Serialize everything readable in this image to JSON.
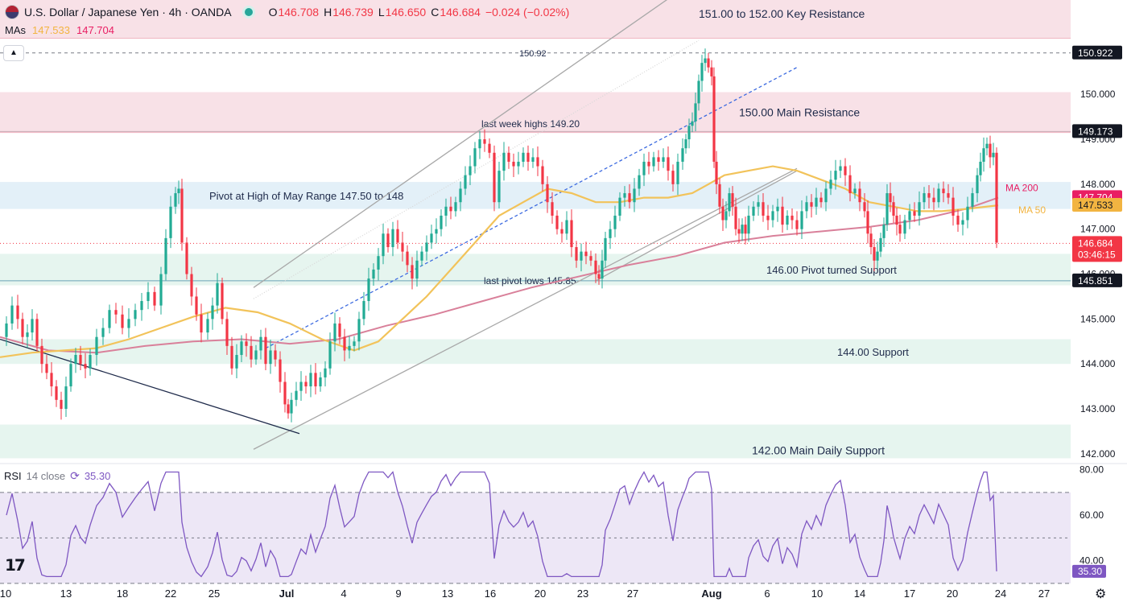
{
  "header": {
    "title": "U.S. Dollar / Japanese Yen · 4h · OANDA",
    "ohlc": [
      {
        "k": "O",
        "v": "146.708"
      },
      {
        "k": "H",
        "v": "146.739"
      },
      {
        "k": "L",
        "v": "146.650"
      },
      {
        "k": "C",
        "v": "146.684"
      }
    ],
    "change": "−0.024 (−0.02%)"
  },
  "mas": {
    "label": "MAs",
    "ma50": "147.533",
    "ma200": "147.704"
  },
  "rsi": {
    "label": "RSI",
    "params": "14 close",
    "value": "35.30"
  },
  "colors": {
    "up": "#22ab94",
    "down": "#f23645",
    "ma50": "#f2c35a",
    "ma200": "#d9809a",
    "rsi": "#7e57c2",
    "resistance_zone": "#f8e1e7",
    "support_zone": "#e6f5ef",
    "pivot_zone": "#e3f0f8"
  },
  "chart_data": {
    "type": "candlestick",
    "symbol": "USD/JPY",
    "timeframe": "4h",
    "broker": "OANDA",
    "ylim": [
      141.8,
      152.1
    ],
    "y_ticks": [
      "142.000",
      "143.000",
      "144.000",
      "145.000",
      "146.000",
      "147.000",
      "148.000",
      "149.000",
      "150.000"
    ],
    "x_ticks": [
      "10",
      "13",
      "18",
      "22",
      "25",
      "Jul",
      "4",
      "9",
      "13",
      "16",
      "20",
      "23",
      "27",
      "Aug",
      "6",
      "10",
      "14",
      "17",
      "20",
      "24",
      "27"
    ],
    "current_price": "146.684",
    "countdown": "03:46:15",
    "price_tags": [
      {
        "label": "150.922",
        "value": 150.922,
        "style": "dark"
      },
      {
        "label": "149.173",
        "value": 149.173,
        "style": "dark"
      },
      {
        "label": "147.704",
        "value": 147.704,
        "style": "ma200"
      },
      {
        "label": "147.533",
        "value": 147.533,
        "style": "ma50"
      },
      {
        "label": "145.851",
        "value": 145.851,
        "style": "dark"
      }
    ],
    "zones": [
      {
        "label": "151.00 to 152.00 Key Resistance",
        "from": 151.25,
        "to": 152.1,
        "kind": "resistance"
      },
      {
        "label": "150.00 Main Resistance",
        "from": 149.15,
        "to": 150.05,
        "kind": "resistance"
      },
      {
        "label": "Pivot at High of May Range 147.50 to 148",
        "from": 147.45,
        "to": 148.05,
        "kind": "pivot"
      },
      {
        "label": "146.00 Pivot turned Support",
        "from": 145.75,
        "to": 146.45,
        "kind": "support"
      },
      {
        "label": "144.00 Support",
        "from": 144.0,
        "to": 144.55,
        "kind": "support"
      },
      {
        "label": "142.00 Main Daily Support",
        "from": 141.9,
        "to": 142.65,
        "kind": "support"
      }
    ],
    "level_labels": [
      {
        "label": "150.92",
        "value": 150.922
      },
      {
        "label": "last week highs 149.20",
        "value": 149.2
      },
      {
        "label": "last pivot lows 145.85",
        "value": 145.851
      }
    ],
    "ma_labels": {
      "ma200": "MA 200",
      "ma50": "MA 50"
    },
    "close_path": [
      [
        0,
        144.6
      ],
      [
        8,
        144.9
      ],
      [
        15,
        145.3
      ],
      [
        22,
        145.0
      ],
      [
        28,
        144.6
      ],
      [
        34,
        144.7
      ],
      [
        40,
        145.0
      ],
      [
        46,
        144.4
      ],
      [
        52,
        144.0
      ],
      [
        58,
        143.8
      ],
      [
        64,
        143.5
      ],
      [
        70,
        143.2
      ],
      [
        76,
        143.0
      ],
      [
        82,
        143.5
      ],
      [
        88,
        144.0
      ],
      [
        94,
        144.2
      ],
      [
        100,
        144.0
      ],
      [
        106,
        143.9
      ],
      [
        112,
        144.2
      ],
      [
        120,
        144.6
      ],
      [
        128,
        144.8
      ],
      [
        136,
        145.2
      ],
      [
        144,
        145.1
      ],
      [
        152,
        144.8
      ],
      [
        160,
        145.0
      ],
      [
        168,
        145.2
      ],
      [
        176,
        145.4
      ],
      [
        184,
        145.6
      ],
      [
        192,
        145.3
      ],
      [
        200,
        146.0
      ],
      [
        206,
        146.8
      ],
      [
        212,
        147.5
      ],
      [
        218,
        147.8
      ],
      [
        222,
        147.9
      ],
      [
        226,
        146.7
      ],
      [
        232,
        146.0
      ],
      [
        238,
        145.5
      ],
      [
        244,
        145.1
      ],
      [
        250,
        144.7
      ],
      [
        258,
        145.0
      ],
      [
        264,
        145.3
      ],
      [
        270,
        145.8
      ],
      [
        276,
        145.0
      ],
      [
        282,
        144.4
      ],
      [
        288,
        143.9
      ],
      [
        294,
        144.2
      ],
      [
        300,
        144.5
      ],
      [
        306,
        144.4
      ],
      [
        312,
        144.1
      ],
      [
        318,
        144.3
      ],
      [
        324,
        144.6
      ],
      [
        330,
        144.0
      ],
      [
        336,
        144.3
      ],
      [
        342,
        144.1
      ],
      [
        348,
        143.6
      ],
      [
        354,
        143.1
      ],
      [
        358,
        142.9
      ],
      [
        362,
        143.2
      ],
      [
        368,
        143.4
      ],
      [
        374,
        143.6
      ],
      [
        380,
        143.5
      ],
      [
        386,
        143.8
      ],
      [
        392,
        143.5
      ],
      [
        398,
        143.7
      ],
      [
        404,
        143.9
      ],
      [
        410,
        144.5
      ],
      [
        416,
        144.9
      ],
      [
        422,
        144.6
      ],
      [
        428,
        144.3
      ],
      [
        434,
        144.4
      ],
      [
        440,
        144.5
      ],
      [
        446,
        145.0
      ],
      [
        452,
        145.4
      ],
      [
        458,
        145.9
      ],
      [
        464,
        146.1
      ],
      [
        470,
        146.4
      ],
      [
        476,
        146.9
      ],
      [
        482,
        146.6
      ],
      [
        488,
        147.0
      ],
      [
        494,
        146.7
      ],
      [
        500,
        146.5
      ],
      [
        506,
        146.2
      ],
      [
        512,
        145.9
      ],
      [
        518,
        146.3
      ],
      [
        524,
        146.5
      ],
      [
        530,
        146.7
      ],
      [
        536,
        146.9
      ],
      [
        542,
        147.0
      ],
      [
        548,
        147.3
      ],
      [
        554,
        147.5
      ],
      [
        560,
        147.4
      ],
      [
        566,
        147.6
      ],
      [
        572,
        147.9
      ],
      [
        578,
        148.2
      ],
      [
        584,
        148.4
      ],
      [
        590,
        148.8
      ],
      [
        596,
        149.0
      ],
      [
        602,
        148.9
      ],
      [
        608,
        148.7
      ],
      [
        614,
        147.6
      ],
      [
        620,
        148.3
      ],
      [
        626,
        148.7
      ],
      [
        632,
        148.5
      ],
      [
        638,
        148.4
      ],
      [
        644,
        148.5
      ],
      [
        650,
        148.7
      ],
      [
        656,
        148.5
      ],
      [
        662,
        148.6
      ],
      [
        668,
        148.4
      ],
      [
        674,
        148.0
      ],
      [
        680,
        147.6
      ],
      [
        686,
        147.3
      ],
      [
        692,
        147.0
      ],
      [
        698,
        146.9
      ],
      [
        704,
        147.2
      ],
      [
        710,
        146.6
      ],
      [
        716,
        146.3
      ],
      [
        722,
        146.5
      ],
      [
        728,
        146.4
      ],
      [
        734,
        146.3
      ],
      [
        740,
        146.0
      ],
      [
        744,
        145.9
      ],
      [
        748,
        146.3
      ],
      [
        752,
        146.8
      ],
      [
        758,
        147.0
      ],
      [
        764,
        147.3
      ],
      [
        770,
        147.7
      ],
      [
        776,
        147.8
      ],
      [
        782,
        147.6
      ],
      [
        788,
        147.9
      ],
      [
        794,
        148.2
      ],
      [
        800,
        148.5
      ],
      [
        806,
        148.4
      ],
      [
        812,
        148.6
      ],
      [
        818,
        148.5
      ],
      [
        824,
        148.6
      ],
      [
        830,
        148.3
      ],
      [
        836,
        148.0
      ],
      [
        842,
        148.5
      ],
      [
        848,
        148.8
      ],
      [
        852,
        149.0
      ],
      [
        856,
        149.3
      ],
      [
        860,
        149.4
      ],
      [
        864,
        149.8
      ],
      [
        868,
        150.3
      ],
      [
        872,
        150.7
      ],
      [
        876,
        150.8
      ],
      [
        880,
        150.6
      ],
      [
        884,
        150.4
      ],
      [
        887,
        148.5
      ],
      [
        890,
        148.0
      ],
      [
        894,
        147.5
      ],
      [
        898,
        147.2
      ],
      [
        902,
        147.4
      ],
      [
        906,
        147.8
      ],
      [
        910,
        147.5
      ],
      [
        914,
        147.0
      ],
      [
        918,
        146.9
      ],
      [
        922,
        147.1
      ],
      [
        926,
        146.9
      ],
      [
        930,
        147.3
      ],
      [
        936,
        147.5
      ],
      [
        942,
        147.6
      ],
      [
        948,
        147.3
      ],
      [
        954,
        147.2
      ],
      [
        960,
        147.4
      ],
      [
        966,
        147.5
      ],
      [
        972,
        147.1
      ],
      [
        978,
        147.3
      ],
      [
        984,
        147.2
      ],
      [
        990,
        147.0
      ],
      [
        996,
        147.4
      ],
      [
        1002,
        147.6
      ],
      [
        1008,
        147.5
      ],
      [
        1014,
        147.7
      ],
      [
        1020,
        147.6
      ],
      [
        1026,
        147.9
      ],
      [
        1032,
        148.1
      ],
      [
        1038,
        148.3
      ],
      [
        1044,
        148.4
      ],
      [
        1050,
        148.2
      ],
      [
        1056,
        147.8
      ],
      [
        1062,
        147.9
      ],
      [
        1068,
        147.6
      ],
      [
        1074,
        147.4
      ],
      [
        1078,
        146.9
      ],
      [
        1082,
        146.6
      ],
      [
        1086,
        146.3
      ],
      [
        1090,
        146.5
      ],
      [
        1094,
        146.8
      ],
      [
        1098,
        147.1
      ],
      [
        1102,
        147.8
      ],
      [
        1106,
        147.6
      ],
      [
        1110,
        147.3
      ],
      [
        1114,
        147.1
      ],
      [
        1118,
        146.9
      ],
      [
        1124,
        147.2
      ],
      [
        1130,
        147.4
      ],
      [
        1136,
        147.3
      ],
      [
        1142,
        147.6
      ],
      [
        1148,
        147.8
      ],
      [
        1154,
        147.7
      ],
      [
        1160,
        147.6
      ],
      [
        1166,
        147.9
      ],
      [
        1172,
        147.8
      ],
      [
        1178,
        147.7
      ],
      [
        1184,
        147.3
      ],
      [
        1190,
        147.1
      ],
      [
        1196,
        147.2
      ],
      [
        1202,
        147.5
      ],
      [
        1208,
        147.8
      ],
      [
        1214,
        148.2
      ],
      [
        1218,
        148.5
      ],
      [
        1222,
        148.8
      ],
      [
        1226,
        148.9
      ],
      [
        1230,
        148.6
      ],
      [
        1234,
        148.7
      ],
      [
        1238,
        146.7
      ]
    ],
    "ma50_path": [
      [
        0,
        144.15
      ],
      [
        40,
        144.25
      ],
      [
        80,
        144.3
      ],
      [
        120,
        144.35
      ],
      [
        160,
        144.55
      ],
      [
        200,
        144.8
      ],
      [
        240,
        145.05
      ],
      [
        280,
        145.25
      ],
      [
        320,
        145.15
      ],
      [
        360,
        144.9
      ],
      [
        400,
        144.55
      ],
      [
        440,
        144.3
      ],
      [
        470,
        144.5
      ],
      [
        500,
        145.0
      ],
      [
        530,
        145.5
      ],
      [
        560,
        146.1
      ],
      [
        590,
        146.7
      ],
      [
        620,
        147.3
      ],
      [
        650,
        147.6
      ],
      [
        680,
        147.9
      ],
      [
        710,
        147.8
      ],
      [
        740,
        147.6
      ],
      [
        770,
        147.6
      ],
      [
        800,
        147.7
      ],
      [
        830,
        147.7
      ],
      [
        860,
        147.8
      ],
      [
        880,
        148.0
      ],
      [
        900,
        148.2
      ],
      [
        930,
        148.3
      ],
      [
        960,
        148.4
      ],
      [
        990,
        148.3
      ],
      [
        1020,
        148.1
      ],
      [
        1050,
        147.9
      ],
      [
        1080,
        147.6
      ],
      [
        1110,
        147.5
      ],
      [
        1140,
        147.4
      ],
      [
        1170,
        147.4
      ],
      [
        1200,
        147.45
      ],
      [
        1240,
        147.53
      ]
    ],
    "ma200_path": [
      [
        0,
        144.6
      ],
      [
        60,
        144.3
      ],
      [
        120,
        144.25
      ],
      [
        180,
        144.4
      ],
      [
        240,
        144.5
      ],
      [
        300,
        144.55
      ],
      [
        360,
        144.45
      ],
      [
        420,
        144.55
      ],
      [
        480,
        144.85
      ],
      [
        540,
        145.1
      ],
      [
        600,
        145.4
      ],
      [
        660,
        145.7
      ],
      [
        720,
        145.95
      ],
      [
        780,
        146.2
      ],
      [
        840,
        146.4
      ],
      [
        900,
        146.7
      ],
      [
        960,
        146.85
      ],
      [
        1020,
        146.95
      ],
      [
        1080,
        147.05
      ],
      [
        1140,
        147.2
      ],
      [
        1200,
        147.45
      ],
      [
        1240,
        147.7
      ]
    ],
    "rsi": {
      "ylim": [
        31,
        82
      ],
      "y_ticks": [
        "80.00",
        "60.00",
        "40.00"
      ],
      "bands": [
        30,
        70
      ],
      "value": 35.3
    }
  }
}
